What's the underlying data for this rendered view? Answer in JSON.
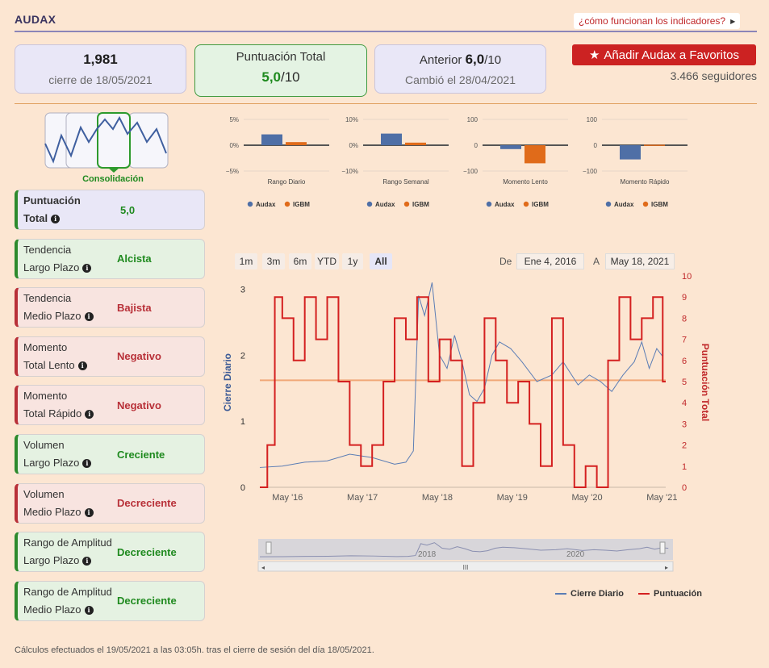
{
  "header": {
    "title": "AUDAX",
    "help_link": "¿cómo funcionan los indicadores?"
  },
  "cards": {
    "close_value": "1,981",
    "close_label": "cierre de 18/05/2021",
    "score_label": "Puntuación Total",
    "score_value": "5,0",
    "score_denominator": "/10",
    "prev_label": "Anterior",
    "prev_value": "6,0",
    "prev_denominator": "/10",
    "prev_change": "Cambió el 28/04/2021"
  },
  "favorites": {
    "button_label": "Añadir Audax a Favoritos",
    "followers": "3.466 seguidores"
  },
  "consolidation": {
    "label": "Consolidación"
  },
  "indicators": [
    {
      "name1": "Puntuación",
      "name2": "Total",
      "value": "5,0",
      "tone": "b"
    },
    {
      "name1": "Tendencia",
      "name2": "Largo Plazo",
      "value": "Alcista",
      "tone": "g"
    },
    {
      "name1": "Tendencia",
      "name2": "Medio Plazo",
      "value": "Bajista",
      "tone": "r"
    },
    {
      "name1": "Momento",
      "name2": "Total Lento",
      "value": "Negativo",
      "tone": "r"
    },
    {
      "name1": "Momento",
      "name2": "Total Rápido",
      "value": "Negativo",
      "tone": "r"
    },
    {
      "name1": "Volumen",
      "name2": "Largo Plazo",
      "value": "Creciente",
      "tone": "g"
    },
    {
      "name1": "Volumen",
      "name2": "Medio Plazo",
      "value": "Decreciente",
      "tone": "r"
    },
    {
      "name1": "Rango de Amplitud",
      "name2": "Largo Plazo",
      "value": "Decreciente",
      "tone": "g"
    },
    {
      "name1": "Rango de Amplitud",
      "name2": "Medio Plazo",
      "value": "Decreciente",
      "tone": "g"
    }
  ],
  "chart_data": [
    {
      "type": "bar",
      "xlabel": "Rango Diario",
      "yticks": [
        "5%",
        "0%",
        "−5%"
      ],
      "ylim": [
        -5,
        5
      ],
      "series": [
        {
          "name": "Audax",
          "values": [
            2.1
          ]
        },
        {
          "name": "IGBM",
          "values": [
            0.6
          ]
        }
      ]
    },
    {
      "type": "bar",
      "xlabel": "Rango Semanal",
      "yticks": [
        "10%",
        "0%",
        "−10%"
      ],
      "ylim": [
        -10,
        10
      ],
      "series": [
        {
          "name": "Audax",
          "values": [
            4.5
          ]
        },
        {
          "name": "IGBM",
          "values": [
            1.0
          ]
        }
      ]
    },
    {
      "type": "bar",
      "xlabel": "Momento Lento",
      "yticks": [
        "100",
        "0",
        "−100"
      ],
      "ylim": [
        -100,
        100
      ],
      "series": [
        {
          "name": "Audax",
          "values": [
            -15
          ]
        },
        {
          "name": "IGBM",
          "values": [
            -70
          ]
        }
      ]
    },
    {
      "type": "bar",
      "xlabel": "Momento Rápido",
      "yticks": [
        "100",
        "0",
        "−100"
      ],
      "ylim": [
        -100,
        100
      ],
      "series": [
        {
          "name": "Audax",
          "values": [
            -55
          ]
        },
        {
          "name": "IGBM",
          "values": [
            2
          ]
        }
      ]
    },
    {
      "type": "line",
      "ylabel_left": "Cierre Diario",
      "ylabel_right": "Puntuación Total",
      "x_ticks": [
        "May '16",
        "May '17",
        "May '18",
        "May '19",
        "May '20",
        "May '21"
      ],
      "y_left_ticks": [
        "0",
        "1",
        "2",
        "3"
      ],
      "y_right_ticks": [
        "0",
        "1",
        "2",
        "3",
        "4",
        "5",
        "6",
        "7",
        "8",
        "9",
        "10"
      ],
      "ylim_left": [
        0,
        3.2
      ],
      "ylim_right": [
        0,
        10
      ],
      "reference_line_left": 1.62,
      "series": [
        {
          "name": "Cierre Diario",
          "axis": "left",
          "x": [
            2016.0,
            2016.3,
            2016.6,
            2016.9,
            2017.2,
            2017.5,
            2017.8,
            2017.95,
            2018.05,
            2018.12,
            2018.2,
            2018.3,
            2018.4,
            2018.5,
            2018.6,
            2018.7,
            2018.8,
            2018.9,
            2019.0,
            2019.1,
            2019.2,
            2019.35,
            2019.5,
            2019.7,
            2019.9,
            2020.05,
            2020.25,
            2020.4,
            2020.55,
            2020.7,
            2020.85,
            2021.0,
            2021.1,
            2021.2,
            2021.3,
            2021.38
          ],
          "values": [
            0.3,
            0.32,
            0.38,
            0.4,
            0.5,
            0.45,
            0.35,
            0.38,
            0.55,
            2.9,
            2.6,
            3.1,
            2.0,
            1.8,
            2.3,
            1.9,
            1.4,
            1.3,
            1.5,
            2.0,
            2.2,
            2.1,
            1.9,
            1.6,
            1.7,
            1.9,
            1.55,
            1.7,
            1.6,
            1.45,
            1.7,
            1.9,
            2.2,
            1.8,
            2.1,
            1.98
          ]
        },
        {
          "name": "Puntuación",
          "axis": "right",
          "x": [
            2016.0,
            2016.1,
            2016.2,
            2016.3,
            2016.45,
            2016.6,
            2016.75,
            2016.9,
            2017.05,
            2017.2,
            2017.35,
            2017.5,
            2017.65,
            2017.8,
            2017.95,
            2018.1,
            2018.25,
            2018.4,
            2018.55,
            2018.7,
            2018.85,
            2019.0,
            2019.15,
            2019.3,
            2019.45,
            2019.6,
            2019.75,
            2019.9,
            2020.05,
            2020.2,
            2020.35,
            2020.5,
            2020.65,
            2020.8,
            2020.95,
            2021.1,
            2021.25,
            2021.38
          ],
          "values": [
            0,
            2,
            9,
            8,
            6,
            9,
            7,
            9,
            5,
            2,
            1,
            2,
            5,
            8,
            7,
            9,
            5,
            7,
            6,
            1,
            4,
            8,
            6,
            4,
            5,
            3,
            1,
            8,
            2,
            0,
            1,
            0,
            6,
            9,
            7,
            8,
            9,
            5
          ]
        }
      ]
    }
  ],
  "bar_legend": {
    "audax": "Audax",
    "igbm": "IGBM"
  },
  "range_selector": {
    "buttons": [
      "1m",
      "3m",
      "6m",
      "YTD",
      "1y",
      "All"
    ],
    "active": "All",
    "from_label": "De",
    "from_value": "Ene 4, 2016",
    "to_label": "A",
    "to_value": "May 18, 2021"
  },
  "navigator": {
    "labels": [
      "2018",
      "2020"
    ],
    "scroll_grip": "III"
  },
  "main_legend": {
    "close": "Cierre Diario",
    "score": "Puntuación"
  },
  "colors": {
    "audax": "#4f6fa6",
    "igbm": "#e06b1a",
    "score": "#d42020",
    "close": "#5b7db5",
    "ref": "#f0a878"
  },
  "footer": "Cálculos efectuados el 19/05/2021 a las 03:05h. tras el cierre de sesión del día 18/05/2021."
}
